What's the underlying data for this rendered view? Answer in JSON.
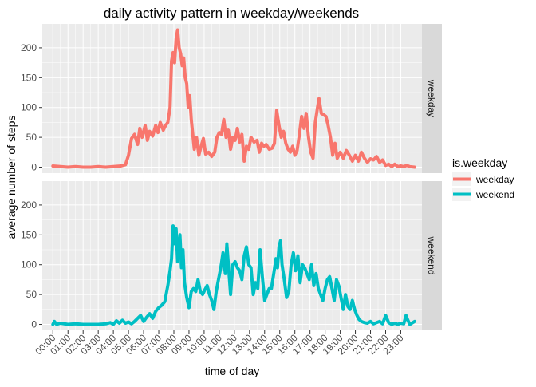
{
  "chart_data": {
    "type": "line",
    "title": "daily activity pattern in weekday/weekends",
    "xlabel": "time of day",
    "ylabel": "average number of steps",
    "x_ticks": [
      "00:00",
      "01:00",
      "02:00",
      "03:00",
      "04:00",
      "05:00",
      "06:00",
      "07:00",
      "08:00",
      "09:00",
      "10:00",
      "11:00",
      "12:00",
      "13:00",
      "14:00",
      "15:00",
      "16:00",
      "17:00",
      "18:00",
      "19:00",
      "20:00",
      "21:00",
      "22:00",
      "23:00"
    ],
    "y_ticks": [
      0,
      50,
      100,
      150,
      200
    ],
    "ylim": [
      -10,
      240
    ],
    "xlim_hours": [
      -0.7,
      24.4
    ],
    "grid": true,
    "legend": {
      "title": "is.weekday",
      "position": "right",
      "entries": [
        "weekday",
        "weekend"
      ]
    },
    "panels": [
      "weekday",
      "weekend"
    ],
    "series": [
      {
        "name": "weekday",
        "color": "#F8766D",
        "points": [
          [
            0.0,
            2
          ],
          [
            0.5,
            1
          ],
          [
            1.0,
            0
          ],
          [
            1.5,
            1
          ],
          [
            2.0,
            0
          ],
          [
            2.5,
            0
          ],
          [
            3.0,
            1
          ],
          [
            3.5,
            0
          ],
          [
            4.0,
            1
          ],
          [
            4.5,
            2
          ],
          [
            4.8,
            4
          ],
          [
            5.0,
            20
          ],
          [
            5.2,
            48
          ],
          [
            5.4,
            55
          ],
          [
            5.6,
            38
          ],
          [
            5.75,
            65
          ],
          [
            5.9,
            50
          ],
          [
            6.1,
            70
          ],
          [
            6.25,
            45
          ],
          [
            6.4,
            60
          ],
          [
            6.6,
            52
          ],
          [
            6.8,
            70
          ],
          [
            6.95,
            58
          ],
          [
            7.1,
            75
          ],
          [
            7.3,
            62
          ],
          [
            7.45,
            70
          ],
          [
            7.6,
            75
          ],
          [
            7.75,
            100
          ],
          [
            7.85,
            178
          ],
          [
            7.95,
            192
          ],
          [
            8.05,
            175
          ],
          [
            8.15,
            215
          ],
          [
            8.25,
            230
          ],
          [
            8.35,
            200
          ],
          [
            8.45,
            190
          ],
          [
            8.55,
            170
          ],
          [
            8.65,
            183
          ],
          [
            8.75,
            150
          ],
          [
            8.85,
            140
          ],
          [
            8.95,
            100
          ],
          [
            9.05,
            120
          ],
          [
            9.15,
            80
          ],
          [
            9.25,
            55
          ],
          [
            9.35,
            30
          ],
          [
            9.5,
            50
          ],
          [
            9.65,
            20
          ],
          [
            9.8,
            35
          ],
          [
            9.95,
            48
          ],
          [
            10.1,
            22
          ],
          [
            10.3,
            25
          ],
          [
            10.5,
            18
          ],
          [
            10.7,
            25
          ],
          [
            10.85,
            50
          ],
          [
            11.0,
            58
          ],
          [
            11.15,
            55
          ],
          [
            11.3,
            80
          ],
          [
            11.45,
            50
          ],
          [
            11.6,
            62
          ],
          [
            11.75,
            30
          ],
          [
            11.9,
            50
          ],
          [
            12.05,
            45
          ],
          [
            12.2,
            65
          ],
          [
            12.35,
            42
          ],
          [
            12.5,
            55
          ],
          [
            12.65,
            10
          ],
          [
            12.8,
            35
          ],
          [
            12.95,
            30
          ],
          [
            13.1,
            50
          ],
          [
            13.3,
            42
          ],
          [
            13.5,
            45
          ],
          [
            13.65,
            25
          ],
          [
            13.8,
            40
          ],
          [
            13.95,
            35
          ],
          [
            14.1,
            38
          ],
          [
            14.3,
            30
          ],
          [
            14.5,
            32
          ],
          [
            14.65,
            40
          ],
          [
            14.8,
            95
          ],
          [
            14.95,
            70
          ],
          [
            15.1,
            50
          ],
          [
            15.25,
            60
          ],
          [
            15.4,
            40
          ],
          [
            15.55,
            30
          ],
          [
            15.7,
            25
          ],
          [
            15.85,
            35
          ],
          [
            16.0,
            20
          ],
          [
            16.15,
            28
          ],
          [
            16.3,
            55
          ],
          [
            16.45,
            85
          ],
          [
            16.6,
            65
          ],
          [
            16.75,
            90
          ],
          [
            16.9,
            50
          ],
          [
            17.05,
            25
          ],
          [
            17.2,
            15
          ],
          [
            17.35,
            75
          ],
          [
            17.5,
            100
          ],
          [
            17.6,
            115
          ],
          [
            17.75,
            90
          ],
          [
            17.9,
            88
          ],
          [
            18.05,
            85
          ],
          [
            18.2,
            70
          ],
          [
            18.35,
            50
          ],
          [
            18.5,
            20
          ],
          [
            18.65,
            40
          ],
          [
            18.8,
            15
          ],
          [
            19.0,
            25
          ],
          [
            19.2,
            15
          ],
          [
            19.4,
            28
          ],
          [
            19.6,
            20
          ],
          [
            19.8,
            10
          ],
          [
            20.0,
            20
          ],
          [
            20.2,
            10
          ],
          [
            20.4,
            25
          ],
          [
            20.6,
            15
          ],
          [
            20.8,
            8
          ],
          [
            21.0,
            14
          ],
          [
            21.2,
            12
          ],
          [
            21.4,
            18
          ],
          [
            21.6,
            8
          ],
          [
            21.8,
            12
          ],
          [
            22.0,
            3
          ],
          [
            22.2,
            5
          ],
          [
            22.4,
            1
          ],
          [
            22.6,
            5
          ],
          [
            22.8,
            1
          ],
          [
            23.0,
            2
          ],
          [
            23.2,
            1
          ],
          [
            23.4,
            3
          ],
          [
            23.6,
            1
          ],
          [
            23.92,
            0
          ]
        ]
      },
      {
        "name": "weekend",
        "color": "#00BFC4",
        "points": [
          [
            0.0,
            0
          ],
          [
            0.1,
            5
          ],
          [
            0.25,
            0
          ],
          [
            0.5,
            2
          ],
          [
            1.0,
            0
          ],
          [
            1.5,
            1
          ],
          [
            2.0,
            0
          ],
          [
            2.5,
            0
          ],
          [
            3.0,
            0
          ],
          [
            3.5,
            1
          ],
          [
            3.8,
            3
          ],
          [
            4.0,
            0
          ],
          [
            4.2,
            6
          ],
          [
            4.4,
            2
          ],
          [
            4.6,
            7
          ],
          [
            4.8,
            2
          ],
          [
            5.0,
            4
          ],
          [
            5.2,
            1
          ],
          [
            5.4,
            5
          ],
          [
            5.6,
            10
          ],
          [
            5.8,
            15
          ],
          [
            6.0,
            5
          ],
          [
            6.2,
            12
          ],
          [
            6.4,
            18
          ],
          [
            6.6,
            10
          ],
          [
            6.8,
            22
          ],
          [
            7.0,
            28
          ],
          [
            7.2,
            32
          ],
          [
            7.4,
            38
          ],
          [
            7.6,
            65
          ],
          [
            7.75,
            90
          ],
          [
            7.85,
            110
          ],
          [
            7.95,
            165
          ],
          [
            8.05,
            135
          ],
          [
            8.15,
            160
          ],
          [
            8.25,
            105
          ],
          [
            8.4,
            150
          ],
          [
            8.5,
            95
          ],
          [
            8.6,
            125
          ],
          [
            8.7,
            70
          ],
          [
            8.85,
            45
          ],
          [
            9.0,
            28
          ],
          [
            9.15,
            55
          ],
          [
            9.3,
            60
          ],
          [
            9.45,
            55
          ],
          [
            9.6,
            75
          ],
          [
            9.75,
            55
          ],
          [
            9.9,
            50
          ],
          [
            10.05,
            58
          ],
          [
            10.2,
            65
          ],
          [
            10.35,
            50
          ],
          [
            10.5,
            40
          ],
          [
            10.65,
            25
          ],
          [
            10.8,
            55
          ],
          [
            10.95,
            75
          ],
          [
            11.1,
            95
          ],
          [
            11.25,
            120
          ],
          [
            11.4,
            85
          ],
          [
            11.5,
            135
          ],
          [
            11.6,
            100
          ],
          [
            11.75,
            50
          ],
          [
            11.9,
            100
          ],
          [
            12.05,
            105
          ],
          [
            12.2,
            95
          ],
          [
            12.35,
            90
          ],
          [
            12.5,
            75
          ],
          [
            12.65,
            115
          ],
          [
            12.8,
            130
          ],
          [
            12.95,
            100
          ],
          [
            13.1,
            95
          ],
          [
            13.25,
            50
          ],
          [
            13.4,
            70
          ],
          [
            13.55,
            60
          ],
          [
            13.7,
            125
          ],
          [
            13.85,
            80
          ],
          [
            14.0,
            40
          ],
          [
            14.15,
            50
          ],
          [
            14.3,
            60
          ],
          [
            14.45,
            60
          ],
          [
            14.6,
            85
          ],
          [
            14.75,
            110
          ],
          [
            14.85,
            95
          ],
          [
            14.95,
            130
          ],
          [
            15.05,
            140
          ],
          [
            15.15,
            100
          ],
          [
            15.3,
            75
          ],
          [
            15.45,
            45
          ],
          [
            15.6,
            55
          ],
          [
            15.75,
            100
          ],
          [
            15.9,
            120
          ],
          [
            16.05,
            90
          ],
          [
            16.2,
            115
          ],
          [
            16.35,
            70
          ],
          [
            16.5,
            100
          ],
          [
            16.65,
            95
          ],
          [
            16.8,
            85
          ],
          [
            16.95,
            75
          ],
          [
            17.1,
            100
          ],
          [
            17.25,
            65
          ],
          [
            17.4,
            85
          ],
          [
            17.55,
            60
          ],
          [
            17.7,
            50
          ],
          [
            17.85,
            40
          ],
          [
            18.0,
            60
          ],
          [
            18.15,
            75
          ],
          [
            18.3,
            80
          ],
          [
            18.45,
            60
          ],
          [
            18.6,
            40
          ],
          [
            18.75,
            75
          ],
          [
            18.9,
            65
          ],
          [
            19.05,
            45
          ],
          [
            19.2,
            25
          ],
          [
            19.35,
            50
          ],
          [
            19.5,
            30
          ],
          [
            19.65,
            25
          ],
          [
            19.8,
            40
          ],
          [
            19.95,
            25
          ],
          [
            20.1,
            15
          ],
          [
            20.25,
            8
          ],
          [
            20.4,
            5
          ],
          [
            20.6,
            3
          ],
          [
            20.8,
            2
          ],
          [
            21.0,
            5
          ],
          [
            21.2,
            1
          ],
          [
            21.4,
            3
          ],
          [
            21.6,
            5
          ],
          [
            21.8,
            1
          ],
          [
            22.0,
            15
          ],
          [
            22.2,
            3
          ],
          [
            22.4,
            0
          ],
          [
            22.6,
            2
          ],
          [
            22.8,
            0
          ],
          [
            23.0,
            2
          ],
          [
            23.2,
            1
          ],
          [
            23.35,
            15
          ],
          [
            23.45,
            8
          ],
          [
            23.6,
            0
          ],
          [
            23.92,
            5
          ]
        ]
      }
    ]
  }
}
